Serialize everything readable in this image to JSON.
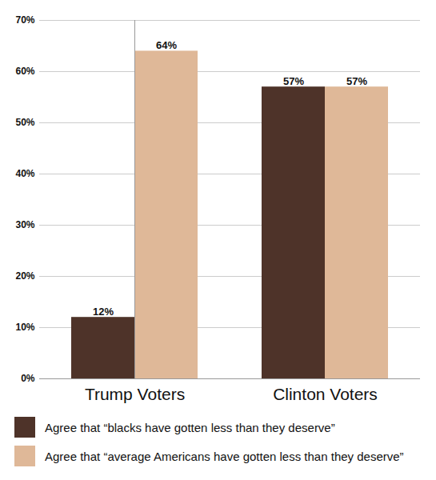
{
  "chart_data": {
    "type": "bar",
    "categories": [
      "Trump Voters",
      "Clinton Voters"
    ],
    "series": [
      {
        "name": "Agree that “blacks have gotten less than they deserve”",
        "color": "#4e3329",
        "values": [
          12,
          57
        ],
        "value_labels": [
          "12%",
          "57%"
        ]
      },
      {
        "name": "Agree that “average Americans have gotten less than they deserve”",
        "color": "#dfb898",
        "values": [
          64,
          57
        ],
        "value_labels": [
          "64%",
          "57%"
        ]
      }
    ],
    "ylim": [
      0,
      70
    ],
    "yticks": [
      {
        "value": 0,
        "label": "0%"
      },
      {
        "value": 10,
        "label": "10%"
      },
      {
        "value": 20,
        "label": "20%"
      },
      {
        "value": 30,
        "label": "30%"
      },
      {
        "value": 40,
        "label": "40%"
      },
      {
        "value": 50,
        "label": "50%"
      },
      {
        "value": 60,
        "label": "60%"
      },
      {
        "value": 70,
        "label": "70%"
      }
    ],
    "grid": true,
    "data_labels": true,
    "legend": "bottom"
  }
}
